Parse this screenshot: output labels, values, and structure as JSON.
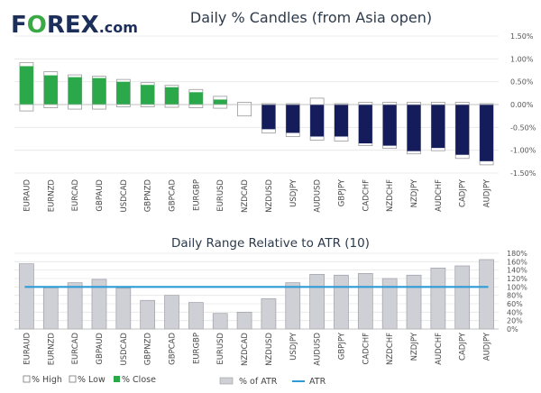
{
  "brand": {
    "logo_text": "F",
    "logo_o": "O",
    "logo_rest": "REX",
    "logo_suffix": ".com"
  },
  "colors": {
    "green": "#2aa84a",
    "navy": "#141c5c",
    "grey_bar": "#cfcfd6",
    "atr_line": "#2f9bd6"
  },
  "chart_data": [
    {
      "type": "bar",
      "subtype": "candle",
      "title": "Daily % Candles (from Asia open)",
      "categories": [
        "EURAUD",
        "EURNZD",
        "EURCAD",
        "GBPAUD",
        "USDCAD",
        "GBPNZD",
        "GBPCAD",
        "EURGBP",
        "EURUSD",
        "NZDCAD",
        "NZDUSD",
        "USDJPY",
        "AUDUSD",
        "GBPJPY",
        "CADCHF",
        "NZDCHF",
        "NZDJPY",
        "AUDCHF",
        "CADJPY",
        "AUDJPY"
      ],
      "series": [
        {
          "name": "% High",
          "values": [
            0.92,
            0.72,
            0.65,
            0.62,
            0.55,
            0.48,
            0.42,
            0.33,
            0.18,
            0.05,
            0.02,
            0.02,
            0.14,
            0.02,
            0.05,
            0.05,
            0.05,
            0.05,
            0.05,
            0.02
          ]
        },
        {
          "name": "% Low",
          "values": [
            -0.14,
            -0.07,
            -0.1,
            -0.1,
            -0.05,
            -0.05,
            -0.06,
            -0.07,
            -0.08,
            -0.25,
            -0.62,
            -0.7,
            -0.78,
            -0.8,
            -0.9,
            -0.96,
            -1.08,
            -1.01,
            -1.18,
            -1.32
          ]
        },
        {
          "name": "% Close",
          "values": [
            0.84,
            0.64,
            0.6,
            0.58,
            0.5,
            0.43,
            0.38,
            0.27,
            0.11,
            0.0,
            -0.54,
            -0.62,
            -0.7,
            -0.7,
            -0.85,
            -0.9,
            -1.02,
            -0.95,
            -1.1,
            -1.24
          ]
        }
      ],
      "yticks": [
        "1.50%",
        "1.00%",
        "0.50%",
        "0.00%",
        "-0.50%",
        "-1.00%",
        "-1.50%"
      ],
      "ylim": [
        -1.5,
        1.5
      ],
      "legend": [
        "% High",
        "% Low",
        "% Close"
      ],
      "legend_position": "bottom-left"
    },
    {
      "type": "bar",
      "title": "Daily Range Relative to ATR (10)",
      "categories": [
        "EURAUD",
        "EURNZD",
        "EURCAD",
        "GBPAUD",
        "USDCAD",
        "GBPNZD",
        "GBPCAD",
        "EURGBP",
        "EURUSD",
        "NZDCAD",
        "NZDUSD",
        "USDJPY",
        "AUDUSD",
        "GBPJPY",
        "CADCHF",
        "NZDCHF",
        "NZDJPY",
        "AUDCHF",
        "CADJPY",
        "AUDJPY"
      ],
      "series": [
        {
          "name": "% of ATR",
          "values": [
            155,
            98,
            110,
            118,
            97,
            68,
            80,
            63,
            37,
            40,
            72,
            110,
            130,
            128,
            132,
            120,
            128,
            145,
            150,
            165
          ]
        },
        {
          "name": "ATR",
          "values": [
            100,
            100,
            100,
            100,
            100,
            100,
            100,
            100,
            100,
            100,
            100,
            100,
            100,
            100,
            100,
            100,
            100,
            100,
            100,
            100
          ]
        }
      ],
      "yticks": [
        "180%",
        "160%",
        "140%",
        "120%",
        "100%",
        "80%",
        "60%",
        "40%",
        "20%",
        "0%"
      ],
      "ylim": [
        0,
        180
      ],
      "legend": [
        "% of ATR",
        "ATR"
      ],
      "legend_position": "bottom-center"
    }
  ]
}
